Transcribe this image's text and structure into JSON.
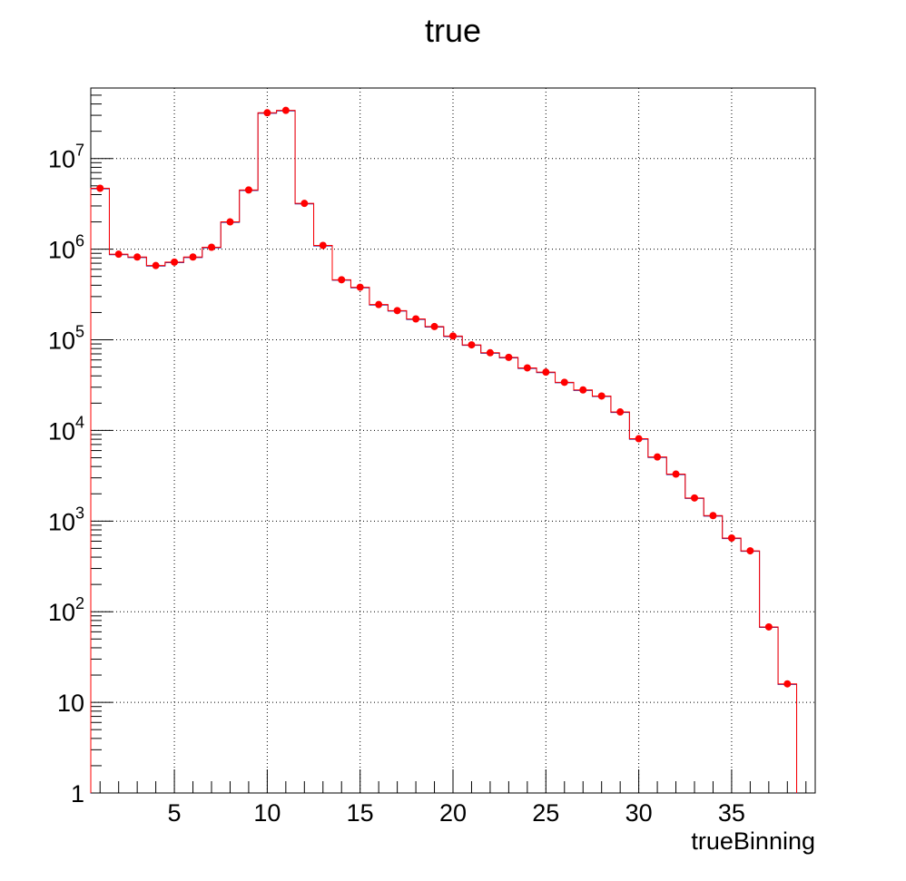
{
  "chart_data": {
    "type": "histogram",
    "title": "true",
    "xlabel": "trueBinning",
    "ylabel": "",
    "xlim": [
      0.5,
      39.5
    ],
    "ylim": [
      1,
      60000000
    ],
    "yscale": "log",
    "grid": true,
    "x_ticks": [
      "5",
      "10",
      "15",
      "20",
      "25",
      "30",
      "35"
    ],
    "y_ticks": [
      {
        "base": "1",
        "exp": ""
      },
      {
        "base": "10",
        "exp": ""
      },
      {
        "base": "10",
        "exp": "2"
      },
      {
        "base": "10",
        "exp": "3"
      },
      {
        "base": "10",
        "exp": "4"
      },
      {
        "base": "10",
        "exp": "5"
      },
      {
        "base": "10",
        "exp": "6"
      },
      {
        "base": "10",
        "exp": "7"
      }
    ],
    "bins": {
      "low": 0.5,
      "width": 1,
      "centers": [
        1,
        2,
        3,
        4,
        5,
        6,
        7,
        8,
        9,
        10,
        11,
        12,
        13,
        14,
        15,
        16,
        17,
        18,
        19,
        20,
        21,
        22,
        23,
        24,
        25,
        26,
        27,
        28,
        29,
        30,
        31,
        32,
        33,
        34,
        35,
        36,
        37,
        38
      ],
      "series": [
        {
          "style": "step",
          "color": "#ff0000",
          "values": [
            4700000,
            880000,
            820000,
            660000,
            720000,
            820000,
            1050000,
            2000000,
            4500000,
            32000000,
            34000000,
            3200000,
            1100000,
            460000,
            380000,
            245000,
            210000,
            170000,
            140000,
            110000,
            88000,
            72000,
            64000,
            49000,
            44000,
            34000,
            28000,
            24000,
            16000,
            8100,
            5100,
            3300,
            1800,
            1150,
            650,
            470,
            68,
            16
          ]
        },
        {
          "style": "markers",
          "color": "#ff0000",
          "values": [
            4700000,
            880000,
            820000,
            660000,
            720000,
            820000,
            1050000,
            2000000,
            4500000,
            32000000,
            34000000,
            3200000,
            1100000,
            460000,
            380000,
            245000,
            210000,
            170000,
            140000,
            110000,
            88000,
            72000,
            64000,
            49000,
            44000,
            34000,
            28000,
            24000,
            16000,
            8100,
            5100,
            3300,
            1800,
            1150,
            650,
            470,
            68,
            16
          ]
        }
      ]
    }
  }
}
